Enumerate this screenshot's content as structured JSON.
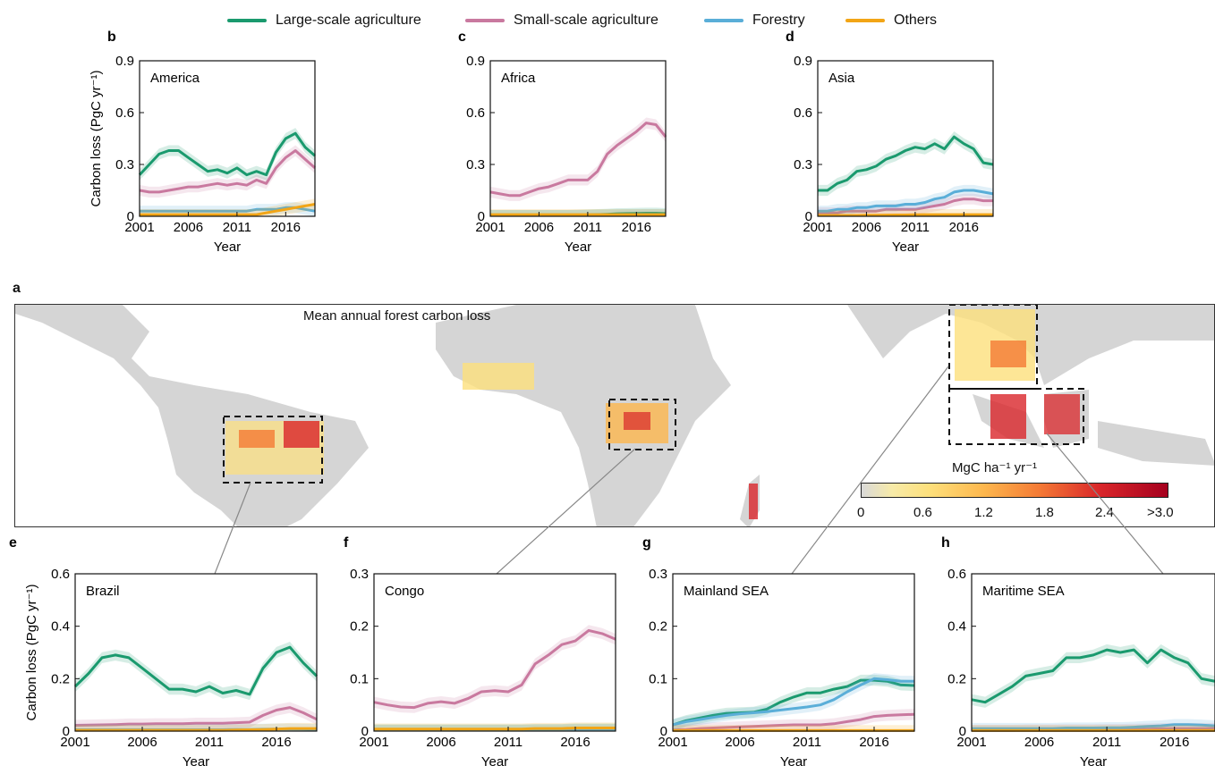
{
  "legend": [
    {
      "name": "Large-scale agriculture",
      "color": "#1a9a6e"
    },
    {
      "name": "Small-scale agriculture",
      "color": "#c9799f"
    },
    {
      "name": "Forestry",
      "color": "#5aaed8"
    },
    {
      "name": "Others",
      "color": "#f2a516"
    }
  ],
  "map": {
    "panel_label": "a",
    "title": "Mean annual forest carbon loss",
    "colorbar": {
      "label": "MgC ha⁻¹ yr⁻¹",
      "ticks": [
        "0",
        "0.6",
        "1.2",
        "1.8",
        "2.4",
        ">3.0"
      ]
    }
  },
  "chart_data": [
    {
      "panel": "b",
      "type": "line",
      "title": "America",
      "xlabel": "Year",
      "ylabel": "Carbon loss (PgC yr⁻¹)",
      "ylim": [
        0,
        0.9
      ],
      "yticks": [
        "0",
        "0.3",
        "0.6",
        "0.9"
      ],
      "xticks": [
        "2001",
        "2006",
        "2011",
        "2016"
      ],
      "x": [
        2001,
        2002,
        2003,
        2004,
        2005,
        2006,
        2007,
        2008,
        2009,
        2010,
        2011,
        2012,
        2013,
        2014,
        2015,
        2016,
        2017,
        2018,
        2019
      ],
      "series": [
        {
          "name": "Large-scale agriculture",
          "values": [
            0.24,
            0.3,
            0.36,
            0.38,
            0.38,
            0.34,
            0.3,
            0.26,
            0.27,
            0.25,
            0.28,
            0.24,
            0.26,
            0.24,
            0.37,
            0.45,
            0.48,
            0.4,
            0.35
          ]
        },
        {
          "name": "Small-scale agriculture",
          "values": [
            0.15,
            0.14,
            0.14,
            0.15,
            0.16,
            0.17,
            0.17,
            0.18,
            0.19,
            0.18,
            0.19,
            0.18,
            0.21,
            0.19,
            0.28,
            0.34,
            0.38,
            0.33,
            0.28
          ]
        },
        {
          "name": "Forestry",
          "values": [
            0.03,
            0.03,
            0.03,
            0.03,
            0.03,
            0.03,
            0.03,
            0.03,
            0.03,
            0.03,
            0.03,
            0.03,
            0.04,
            0.04,
            0.04,
            0.05,
            0.05,
            0.04,
            0.03
          ]
        },
        {
          "name": "Others",
          "values": [
            0.01,
            0.01,
            0.01,
            0.01,
            0.01,
            0.01,
            0.01,
            0.01,
            0.01,
            0.01,
            0.01,
            0.01,
            0.01,
            0.02,
            0.03,
            0.04,
            0.05,
            0.06,
            0.07
          ]
        }
      ]
    },
    {
      "panel": "c",
      "type": "line",
      "title": "Africa",
      "xlabel": "Year",
      "ylabel": "",
      "ylim": [
        0,
        0.9
      ],
      "yticks": [
        "0",
        "0.3",
        "0.6",
        "0.9"
      ],
      "xticks": [
        "2001",
        "2006",
        "2011",
        "2016"
      ],
      "x": [
        2001,
        2002,
        2003,
        2004,
        2005,
        2006,
        2007,
        2008,
        2009,
        2010,
        2011,
        2012,
        2013,
        2014,
        2015,
        2016,
        2017,
        2018,
        2019
      ],
      "series": [
        {
          "name": "Large-scale agriculture",
          "values": [
            0.005,
            0.005,
            0.005,
            0.005,
            0.005,
            0.005,
            0.005,
            0.005,
            0.005,
            0.006,
            0.008,
            0.01,
            0.012,
            0.015,
            0.016,
            0.017,
            0.018,
            0.018,
            0.016
          ]
        },
        {
          "name": "Small-scale agriculture",
          "values": [
            0.14,
            0.13,
            0.12,
            0.12,
            0.14,
            0.16,
            0.17,
            0.19,
            0.21,
            0.21,
            0.21,
            0.26,
            0.36,
            0.41,
            0.45,
            0.49,
            0.54,
            0.53,
            0.46
          ]
        },
        {
          "name": "Forestry",
          "values": [
            0.005,
            0.005,
            0.005,
            0.005,
            0.005,
            0.005,
            0.005,
            0.005,
            0.005,
            0.005,
            0.005,
            0.006,
            0.007,
            0.008,
            0.009,
            0.009,
            0.01,
            0.01,
            0.009
          ]
        },
        {
          "name": "Others",
          "values": [
            0.01,
            0.01,
            0.01,
            0.01,
            0.01,
            0.01,
            0.01,
            0.01,
            0.01,
            0.01,
            0.01,
            0.01,
            0.01,
            0.01,
            0.01,
            0.01,
            0.01,
            0.01,
            0.01
          ]
        }
      ]
    },
    {
      "panel": "d",
      "type": "line",
      "title": "Asia",
      "xlabel": "Year",
      "ylabel": "",
      "ylim": [
        0,
        0.9
      ],
      "yticks": [
        "0",
        "0.3",
        "0.6",
        "0.9"
      ],
      "xticks": [
        "2001",
        "2006",
        "2011",
        "2016"
      ],
      "x": [
        2001,
        2002,
        2003,
        2004,
        2005,
        2006,
        2007,
        2008,
        2009,
        2010,
        2011,
        2012,
        2013,
        2014,
        2015,
        2016,
        2017,
        2018,
        2019
      ],
      "series": [
        {
          "name": "Large-scale agriculture",
          "values": [
            0.15,
            0.15,
            0.19,
            0.21,
            0.26,
            0.27,
            0.29,
            0.33,
            0.35,
            0.38,
            0.4,
            0.39,
            0.42,
            0.39,
            0.46,
            0.42,
            0.39,
            0.31,
            0.3
          ]
        },
        {
          "name": "Small-scale agriculture",
          "values": [
            0.02,
            0.02,
            0.02,
            0.03,
            0.03,
            0.03,
            0.03,
            0.04,
            0.04,
            0.04,
            0.04,
            0.05,
            0.06,
            0.07,
            0.09,
            0.1,
            0.1,
            0.09,
            0.09
          ]
        },
        {
          "name": "Forestry",
          "values": [
            0.03,
            0.03,
            0.04,
            0.04,
            0.05,
            0.05,
            0.06,
            0.06,
            0.06,
            0.07,
            0.07,
            0.08,
            0.1,
            0.11,
            0.14,
            0.15,
            0.15,
            0.14,
            0.13
          ]
        },
        {
          "name": "Others",
          "values": [
            0.005,
            0.005,
            0.005,
            0.005,
            0.005,
            0.006,
            0.006,
            0.007,
            0.008,
            0.008,
            0.009,
            0.01,
            0.01,
            0.01,
            0.01,
            0.01,
            0.01,
            0.01,
            0.01
          ]
        }
      ]
    },
    {
      "panel": "e",
      "type": "line",
      "title": "Brazil",
      "xlabel": "Year",
      "ylabel": "Carbon loss (PgC yr⁻¹)",
      "ylim": [
        0,
        0.6
      ],
      "yticks": [
        "0",
        "0.2",
        "0.4",
        "0.6"
      ],
      "xticks": [
        "2001",
        "2006",
        "2011",
        "2016"
      ],
      "x": [
        2001,
        2002,
        2003,
        2004,
        2005,
        2006,
        2007,
        2008,
        2009,
        2010,
        2011,
        2012,
        2013,
        2014,
        2015,
        2016,
        2017,
        2018,
        2019
      ],
      "series": [
        {
          "name": "Large-scale agriculture",
          "values": [
            0.17,
            0.22,
            0.28,
            0.29,
            0.28,
            0.24,
            0.2,
            0.16,
            0.16,
            0.15,
            0.17,
            0.145,
            0.155,
            0.14,
            0.24,
            0.3,
            0.32,
            0.26,
            0.21
          ]
        },
        {
          "name": "Small-scale agriculture",
          "values": [
            0.022,
            0.023,
            0.024,
            0.025,
            0.027,
            0.027,
            0.028,
            0.028,
            0.028,
            0.03,
            0.03,
            0.03,
            0.032,
            0.034,
            0.06,
            0.08,
            0.09,
            0.07,
            0.045
          ]
        },
        {
          "name": "Forestry",
          "values": [
            0.005,
            0.005,
            0.005,
            0.005,
            0.005,
            0.005,
            0.005,
            0.005,
            0.005,
            0.005,
            0.005,
            0.005,
            0.006,
            0.006,
            0.007,
            0.008,
            0.008,
            0.007,
            0.006
          ]
        },
        {
          "name": "Others",
          "values": [
            0.003,
            0.003,
            0.003,
            0.003,
            0.003,
            0.003,
            0.003,
            0.003,
            0.003,
            0.003,
            0.003,
            0.003,
            0.004,
            0.005,
            0.006,
            0.008,
            0.01,
            0.01,
            0.01
          ]
        }
      ]
    },
    {
      "panel": "f",
      "type": "line",
      "title": "Congo",
      "xlabel": "Year",
      "ylabel": "",
      "ylim": [
        0,
        0.3
      ],
      "yticks": [
        "0",
        "0.1",
        "0.2",
        "0.3"
      ],
      "xticks": [
        "2001",
        "2006",
        "2011",
        "2016"
      ],
      "x": [
        2001,
        2002,
        2003,
        2004,
        2005,
        2006,
        2007,
        2008,
        2009,
        2010,
        2011,
        2012,
        2013,
        2014,
        2015,
        2016,
        2017,
        2018,
        2019
      ],
      "series": [
        {
          "name": "Large-scale agriculture",
          "values": [
            0.002,
            0.002,
            0.002,
            0.002,
            0.002,
            0.002,
            0.002,
            0.002,
            0.002,
            0.002,
            0.002,
            0.002,
            0.003,
            0.003,
            0.003,
            0.004,
            0.004,
            0.004,
            0.004
          ]
        },
        {
          "name": "Small-scale agriculture",
          "values": [
            0.055,
            0.05,
            0.046,
            0.045,
            0.053,
            0.056,
            0.053,
            0.062,
            0.075,
            0.077,
            0.075,
            0.088,
            0.128,
            0.145,
            0.165,
            0.172,
            0.192,
            0.186,
            0.175
          ]
        },
        {
          "name": "Forestry",
          "values": [
            0.002,
            0.002,
            0.002,
            0.002,
            0.002,
            0.002,
            0.002,
            0.002,
            0.002,
            0.002,
            0.002,
            0.002,
            0.002,
            0.002,
            0.002,
            0.003,
            0.003,
            0.003,
            0.003
          ]
        },
        {
          "name": "Others",
          "values": [
            0.004,
            0.004,
            0.004,
            0.004,
            0.004,
            0.004,
            0.004,
            0.004,
            0.004,
            0.004,
            0.004,
            0.004,
            0.005,
            0.005,
            0.005,
            0.006,
            0.006,
            0.006,
            0.006
          ]
        }
      ]
    },
    {
      "panel": "g",
      "type": "line",
      "title": "Mainland SEA",
      "xlabel": "Year",
      "ylabel": "",
      "ylim": [
        0,
        0.3
      ],
      "yticks": [
        "0",
        "0.1",
        "0.2",
        "0.3"
      ],
      "xticks": [
        "2001",
        "2006",
        "2011",
        "2016"
      ],
      "x": [
        2001,
        2002,
        2003,
        2004,
        2005,
        2006,
        2007,
        2008,
        2009,
        2010,
        2011,
        2012,
        2013,
        2014,
        2015,
        2016,
        2017,
        2018,
        2019
      ],
      "series": [
        {
          "name": "Large-scale agriculture",
          "values": [
            0.012,
            0.02,
            0.025,
            0.03,
            0.034,
            0.035,
            0.036,
            0.042,
            0.055,
            0.065,
            0.073,
            0.073,
            0.08,
            0.085,
            0.097,
            0.097,
            0.095,
            0.088,
            0.087
          ]
        },
        {
          "name": "Small-scale agriculture",
          "values": [
            0.002,
            0.003,
            0.005,
            0.006,
            0.007,
            0.008,
            0.009,
            0.01,
            0.011,
            0.012,
            0.012,
            0.012,
            0.014,
            0.018,
            0.022,
            0.028,
            0.03,
            0.031,
            0.032
          ]
        },
        {
          "name": "Forestry",
          "values": [
            0.012,
            0.018,
            0.022,
            0.026,
            0.03,
            0.033,
            0.035,
            0.037,
            0.04,
            0.043,
            0.046,
            0.05,
            0.06,
            0.075,
            0.088,
            0.1,
            0.098,
            0.095,
            0.095
          ]
        },
        {
          "name": "Others",
          "values": [
            0.001,
            0.001,
            0.001,
            0.001,
            0.001,
            0.001,
            0.001,
            0.001,
            0.001,
            0.001,
            0.001,
            0.001,
            0.001,
            0.001,
            0.001,
            0.001,
            0.001,
            0.001,
            0.001
          ]
        }
      ]
    },
    {
      "panel": "h",
      "type": "line",
      "title": "Maritime SEA",
      "xlabel": "Year",
      "ylabel": "",
      "ylim": [
        0,
        0.6
      ],
      "yticks": [
        "0",
        "0.2",
        "0.4",
        "0.6"
      ],
      "xticks": [
        "2001",
        "2006",
        "2011",
        "2016"
      ],
      "x": [
        2001,
        2002,
        2003,
        2004,
        2005,
        2006,
        2007,
        2008,
        2009,
        2010,
        2011,
        2012,
        2013,
        2014,
        2015,
        2016,
        2017,
        2018,
        2019
      ],
      "series": [
        {
          "name": "Large-scale agriculture",
          "values": [
            0.12,
            0.11,
            0.14,
            0.17,
            0.21,
            0.22,
            0.23,
            0.28,
            0.28,
            0.29,
            0.31,
            0.3,
            0.31,
            0.26,
            0.31,
            0.28,
            0.26,
            0.2,
            0.19
          ]
        },
        {
          "name": "Small-scale agriculture",
          "values": [
            0.003,
            0.003,
            0.003,
            0.003,
            0.004,
            0.004,
            0.004,
            0.005,
            0.005,
            0.005,
            0.006,
            0.006,
            0.007,
            0.008,
            0.009,
            0.01,
            0.01,
            0.01,
            0.01
          ]
        },
        {
          "name": "Forestry",
          "values": [
            0.01,
            0.01,
            0.01,
            0.01,
            0.01,
            0.01,
            0.01,
            0.012,
            0.012,
            0.012,
            0.013,
            0.013,
            0.015,
            0.018,
            0.02,
            0.025,
            0.025,
            0.023,
            0.02
          ]
        },
        {
          "name": "Others",
          "values": [
            0.002,
            0.002,
            0.002,
            0.002,
            0.002,
            0.002,
            0.002,
            0.002,
            0.002,
            0.002,
            0.002,
            0.002,
            0.002,
            0.002,
            0.002,
            0.002,
            0.002,
            0.002,
            0.002
          ]
        }
      ]
    }
  ]
}
